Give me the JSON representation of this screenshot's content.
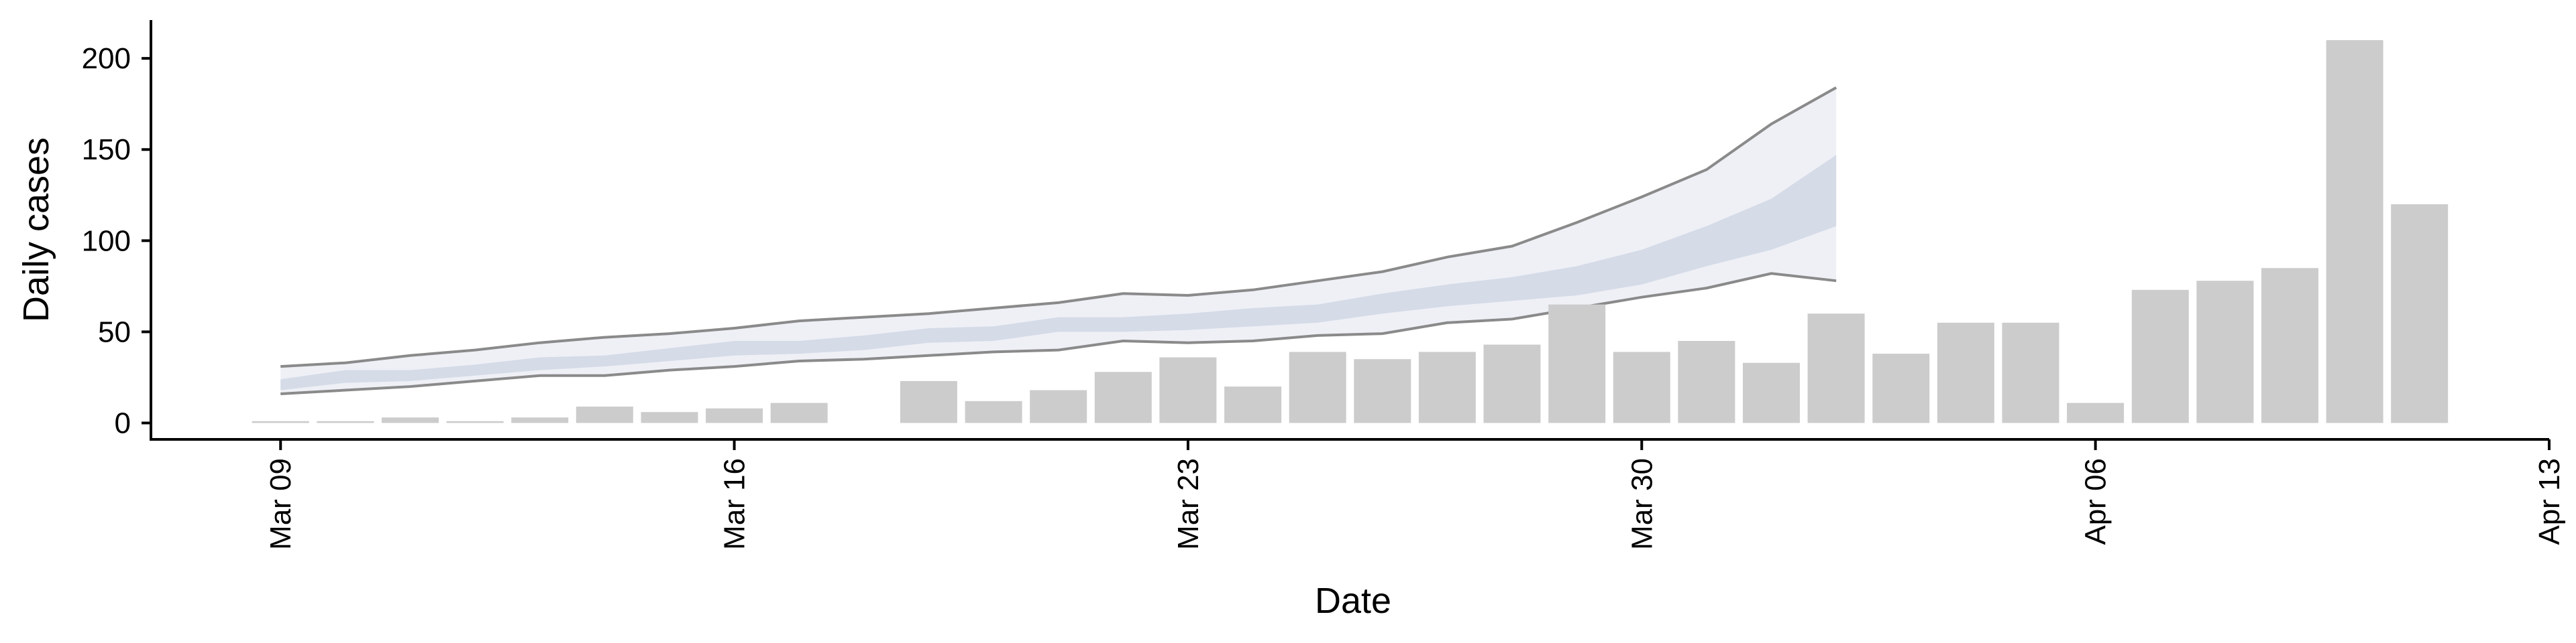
{
  "chart_data": {
    "type": "bar",
    "title": "",
    "xlabel": "Date",
    "ylabel": "Daily cases",
    "xlim": [
      "2020-03-07",
      "2020-04-13"
    ],
    "ylim": [
      -9,
      221
    ],
    "grid": false,
    "x_ticks": [
      {
        "date": "2020-03-09",
        "label": "Mar 09"
      },
      {
        "date": "2020-03-16",
        "label": "Mar 16"
      },
      {
        "date": "2020-03-23",
        "label": "Mar 23"
      },
      {
        "date": "2020-03-30",
        "label": "Mar 30"
      },
      {
        "date": "2020-04-06",
        "label": "Apr 06"
      },
      {
        "date": "2020-04-13",
        "label": "Apr 13"
      }
    ],
    "y_ticks": [
      0,
      50,
      100,
      150,
      200
    ],
    "bars": {
      "color": "#cccccc",
      "dates": [
        "2020-03-09",
        "2020-03-10",
        "2020-03-11",
        "2020-03-12",
        "2020-03-13",
        "2020-03-14",
        "2020-03-15",
        "2020-03-16",
        "2020-03-17",
        "2020-03-18",
        "2020-03-19",
        "2020-03-20",
        "2020-03-21",
        "2020-03-22",
        "2020-03-23",
        "2020-03-24",
        "2020-03-25",
        "2020-03-26",
        "2020-03-27",
        "2020-03-28",
        "2020-03-29",
        "2020-03-30",
        "2020-03-31",
        "2020-04-01",
        "2020-04-02",
        "2020-04-03",
        "2020-04-04",
        "2020-04-05",
        "2020-04-06",
        "2020-04-07",
        "2020-04-08",
        "2020-04-09",
        "2020-04-10",
        "2020-04-11"
      ],
      "values": [
        1,
        1,
        3,
        1,
        3,
        9,
        6,
        8,
        11,
        0,
        23,
        12,
        18,
        28,
        36,
        20,
        39,
        35,
        39,
        43,
        65,
        39,
        45,
        33,
        60,
        38,
        55,
        55,
        11,
        73,
        78,
        85,
        210,
        120
      ]
    },
    "estimate": {
      "dates": [
        "2020-03-09",
        "2020-03-10",
        "2020-03-11",
        "2020-03-12",
        "2020-03-13",
        "2020-03-14",
        "2020-03-15",
        "2020-03-16",
        "2020-03-17",
        "2020-03-18",
        "2020-03-19",
        "2020-03-20",
        "2020-03-21",
        "2020-03-22",
        "2020-03-23",
        "2020-03-24",
        "2020-03-25",
        "2020-03-26",
        "2020-03-27",
        "2020-03-28",
        "2020-03-29",
        "2020-03-30",
        "2020-03-31",
        "2020-04-01",
        "2020-04-02"
      ],
      "outer_lower": [
        16,
        18,
        20,
        23,
        26,
        26,
        29,
        31,
        34,
        35,
        37,
        39,
        40,
        45,
        44,
        45,
        48,
        49,
        55,
        57,
        63,
        69,
        74,
        82,
        78
      ],
      "outer_upper": [
        31,
        33,
        37,
        40,
        44,
        47,
        49,
        52,
        56,
        58,
        60,
        63,
        66,
        71,
        70,
        73,
        78,
        83,
        91,
        97,
        110,
        124,
        139,
        164,
        184
      ],
      "inner_lower": [
        18,
        22,
        23,
        26,
        29,
        31,
        34,
        37,
        38,
        40,
        44,
        45,
        50,
        50,
        51,
        53,
        55,
        60,
        64,
        67,
        70,
        76,
        86,
        95,
        108
      ],
      "inner_upper": [
        24,
        29,
        29,
        32,
        36,
        37,
        41,
        45,
        45,
        48,
        52,
        53,
        58,
        58,
        60,
        63,
        65,
        71,
        76,
        80,
        86,
        95,
        108,
        123,
        147
      ],
      "inner_color": "#d3d9e6",
      "outer_color": "#eceef5",
      "outline_color": "#8a8a8a"
    }
  }
}
